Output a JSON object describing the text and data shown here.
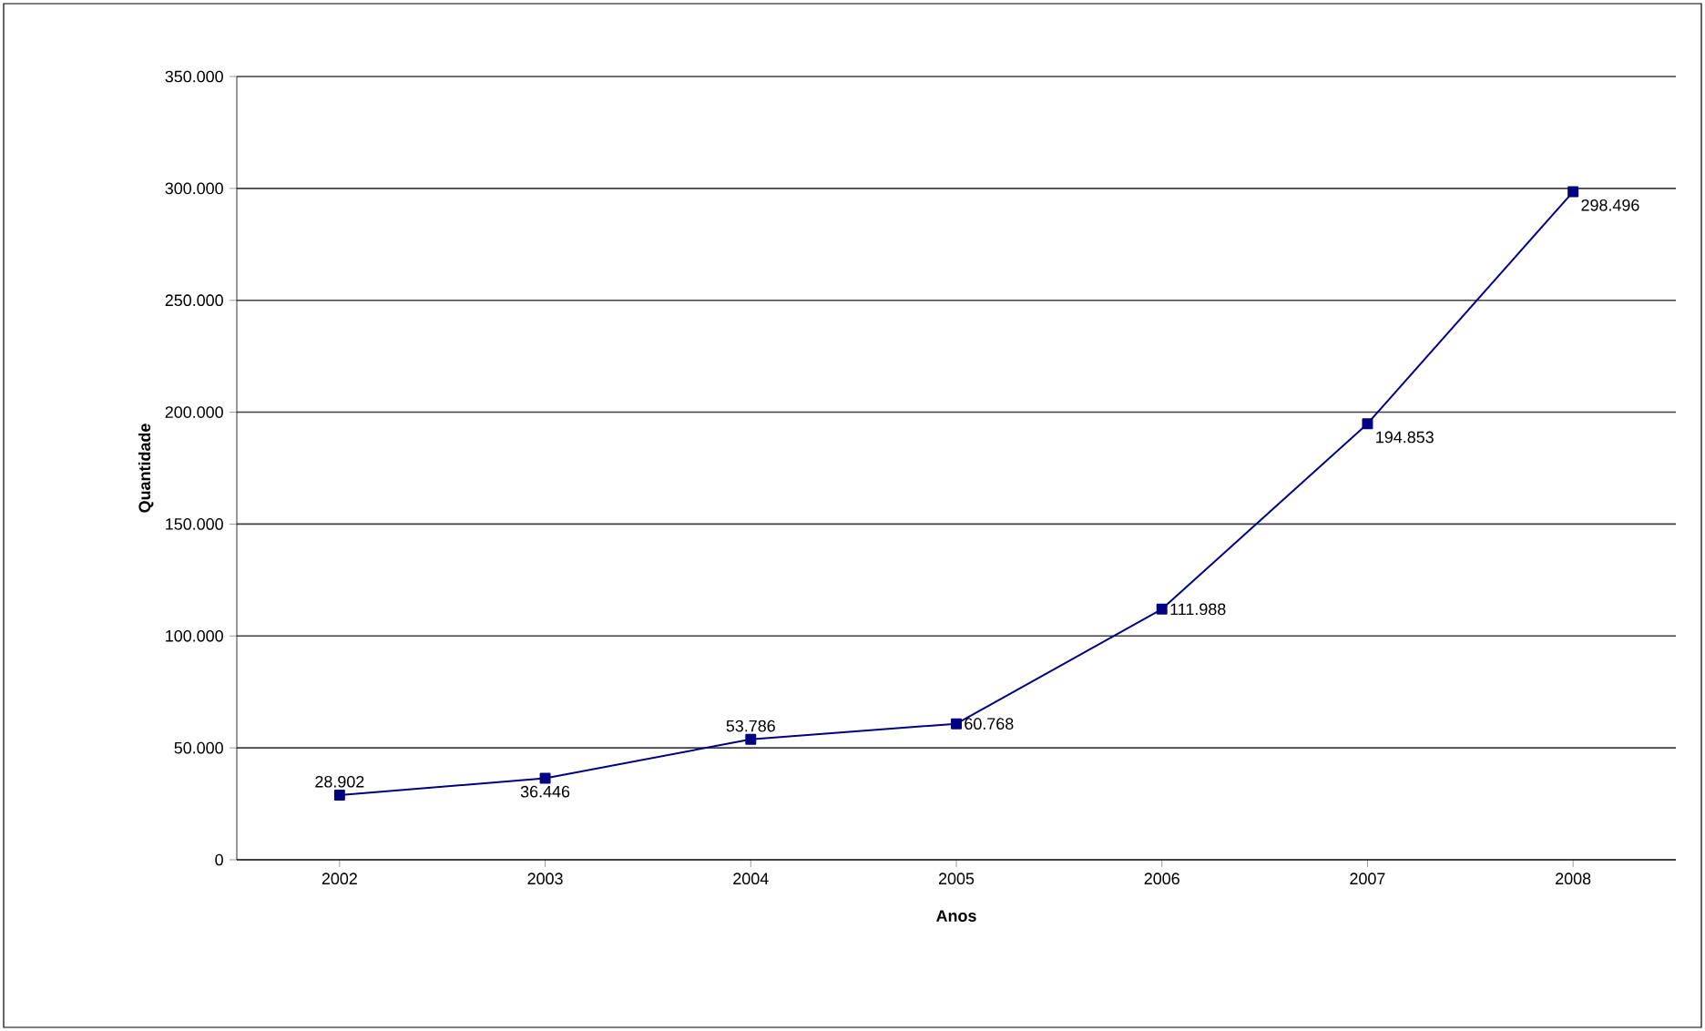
{
  "chart_data": {
    "type": "line",
    "xlabel": "Anos",
    "ylabel": "Quantidade",
    "categories": [
      "2002",
      "2003",
      "2004",
      "2005",
      "2006",
      "2007",
      "2008"
    ],
    "series": [
      {
        "color": "#000080",
        "values": [
          28902,
          36446,
          53786,
          60768,
          111988,
          194853,
          298496
        ],
        "value_labels": [
          "28.902",
          "36.446",
          "53.786",
          "60.768",
          "111.988",
          "194.853",
          "298.496"
        ]
      }
    ],
    "ylim": [
      0,
      350000
    ],
    "yticks": [
      {
        "value": 0,
        "label": "0"
      },
      {
        "value": 50000,
        "label": "50.000"
      },
      {
        "value": 100000,
        "label": "100.000"
      },
      {
        "value": 150000,
        "label": "150.000"
      },
      {
        "value": 200000,
        "label": "200.000"
      },
      {
        "value": 250000,
        "label": "250.000"
      },
      {
        "value": 300000,
        "label": "300.000"
      },
      {
        "value": 350000,
        "label": "350.000"
      }
    ],
    "grid": "y",
    "marker": "square",
    "line_style": "solid",
    "legend": false
  }
}
